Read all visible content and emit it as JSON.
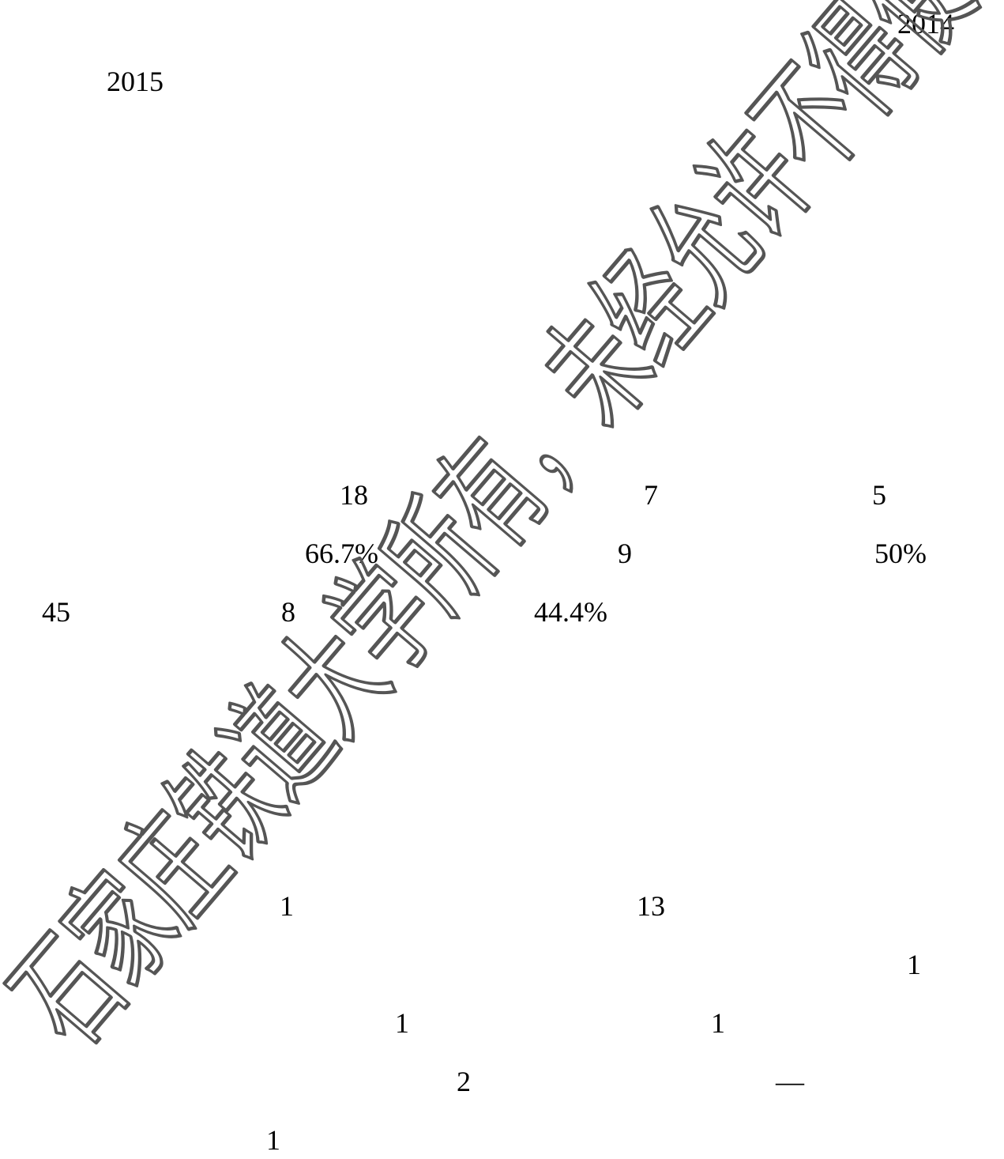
{
  "header": {
    "year_right": "2014",
    "year_left": "2015"
  },
  "figures": {
    "row1": [
      "18",
      "7",
      "5"
    ],
    "row2": [
      "66.7%",
      "9",
      "50%"
    ],
    "row3": [
      "45",
      "8",
      "44.4%"
    ],
    "row4": [
      "1",
      "13"
    ],
    "row5": [
      "1"
    ],
    "row6": [
      "1",
      "1"
    ],
    "row7": [
      "2",
      "—"
    ],
    "row8": [
      "1"
    ]
  },
  "watermark": {
    "text": "石家庄铁道大学所有，未经允许不得使用",
    "color": "#555555"
  }
}
